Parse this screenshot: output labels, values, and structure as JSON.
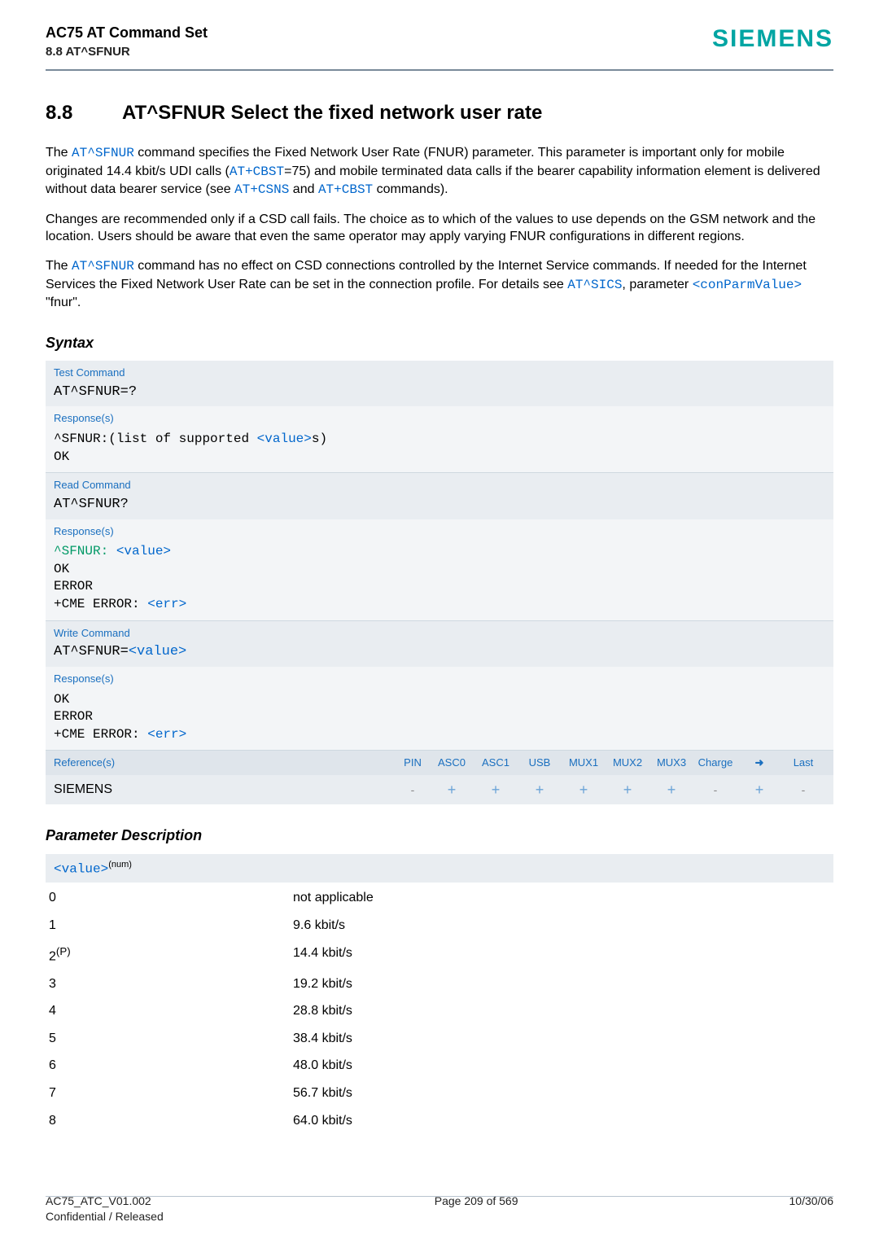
{
  "header": {
    "doc_title": "AC75 AT Command Set",
    "sub": "8.8 AT^SFNUR",
    "brand": "SIEMENS"
  },
  "section": {
    "number": "8.8",
    "title": "AT^SFNUR   Select the fixed network user rate"
  },
  "intro": {
    "p1_a": "The ",
    "p1_cmd1": "AT^SFNUR",
    "p1_b": " command specifies the Fixed Network User Rate (FNUR) parameter. This parameter is important only for mobile originated 14.4 kbit/s UDI calls (",
    "p1_cmd2": "AT+CBST",
    "p1_c": "=75) and mobile terminated data calls if the bearer capability information element is delivered without data bearer service (see ",
    "p1_cmd3": "AT+CSNS",
    "p1_d": " and ",
    "p1_cmd4": "AT+CBST",
    "p1_e": " commands).",
    "p2": "Changes are recommended only if a CSD call fails. The choice as to which of the values to use depends on the GSM network and the location. Users should be aware that even the same operator may apply varying FNUR configurations in different regions.",
    "p3_a": "The ",
    "p3_cmd1": "AT^SFNUR",
    "p3_b": " command has no effect on CSD connections controlled by the Internet Service commands. If needed for the Internet Services the Fixed Network User Rate can be set in the connection profile. For details see ",
    "p3_cmd2": "AT^SICS",
    "p3_c": ", parameter ",
    "p3_cmd3": "<conParmValue>",
    "p3_d": " \"fnur\"."
  },
  "syntax": {
    "heading": "Syntax",
    "test": {
      "label": "Test Command",
      "cmd": "AT^SFNUR=?",
      "resp_label": "Response(s)",
      "resp_prefix": "^SFNUR:",
      "resp_text_a": "(list of supported ",
      "resp_value": "<value>",
      "resp_text_b": "s)",
      "ok": "OK"
    },
    "read": {
      "label": "Read Command",
      "cmd": "AT^SFNUR?",
      "resp_label": "Response(s)",
      "line1_prefix": "^SFNUR: ",
      "line1_value": "<value>",
      "ok": "OK",
      "err": "ERROR",
      "cme": "+CME ERROR: ",
      "cme_val": "<err>"
    },
    "write": {
      "label": "Write Command",
      "cmd_prefix": "AT^SFNUR=",
      "cmd_value": "<value>",
      "resp_label": "Response(s)",
      "ok": "OK",
      "err": "ERROR",
      "cme": "+CME ERROR: ",
      "cme_val": "<err>"
    },
    "ref": {
      "label": "Reference(s)",
      "cols": [
        "PIN",
        "ASC0",
        "ASC1",
        "USB",
        "MUX1",
        "MUX2",
        "MUX3",
        "Charge",
        "➜",
        "Last"
      ]
    },
    "siemens": {
      "label": "SIEMENS",
      "vals": [
        "-",
        "+",
        "+",
        "+",
        "+",
        "+",
        "+",
        "-",
        "+",
        "-"
      ]
    }
  },
  "paramdesc": {
    "heading": "Parameter Description",
    "head_a": "<value>",
    "head_sup": "(num)",
    "rows": [
      {
        "k": "0",
        "v": "not applicable"
      },
      {
        "k": "1",
        "v": "9.6 kbit/s"
      },
      {
        "k": "2",
        "sup": "(P)",
        "v": "14.4 kbit/s"
      },
      {
        "k": "3",
        "v": "19.2 kbit/s"
      },
      {
        "k": "4",
        "v": "28.8 kbit/s"
      },
      {
        "k": "5",
        "v": "38.4 kbit/s"
      },
      {
        "k": "6",
        "v": "48.0 kbit/s"
      },
      {
        "k": "7",
        "v": "56.7 kbit/s"
      },
      {
        "k": "8",
        "v": "64.0 kbit/s"
      }
    ]
  },
  "footer": {
    "left1": "AC75_ATC_V01.002",
    "left2": "Confidential / Released",
    "center": "Page 209 of 569",
    "right": "10/30/06"
  }
}
